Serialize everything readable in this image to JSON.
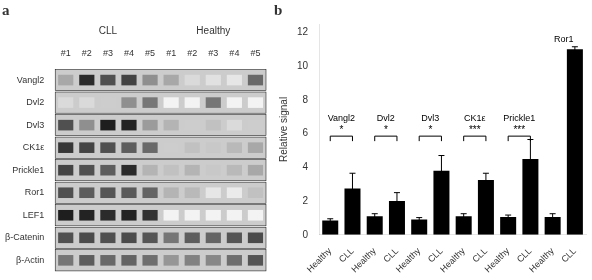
{
  "chart_data": [
    {
      "type": "heatmap",
      "title": "a",
      "rows": [
        "Vangl2",
        "Dvl2",
        "Dvl3",
        "CK1ε",
        "Prickle1",
        "Ror1",
        "LEF1",
        "β-Catenin",
        "β-Actin"
      ],
      "categories": [
        "#1",
        "#2",
        "#3",
        "#4",
        "#5"
      ],
      "series": [
        {
          "name": "CLL",
          "values": [
            [
              0.35,
              0.85,
              0.7,
              0.75,
              0.45
            ],
            [
              0.15,
              0.15,
              0.2,
              0.45,
              0.55
            ],
            [
              0.7,
              0.45,
              0.9,
              0.88,
              0.4
            ],
            [
              0.8,
              0.75,
              0.7,
              0.65,
              0.6
            ],
            [
              0.75,
              0.7,
              0.65,
              0.85,
              0.3
            ],
            [
              0.7,
              0.65,
              0.68,
              0.66,
              0.62
            ],
            [
              0.9,
              0.88,
              0.85,
              0.88,
              0.82
            ],
            [
              0.7,
              0.72,
              0.7,
              0.72,
              0.68
            ],
            [
              0.55,
              0.65,
              0.6,
              0.62,
              0.58
            ]
          ]
        },
        {
          "name": "Healthy",
          "values": [
            [
              0.35,
              0.15,
              0.12,
              0.1,
              0.6
            ],
            [
              0.05,
              0.05,
              0.55,
              0.05,
              0.05
            ],
            [
              0.3,
              0.2,
              0.25,
              0.15,
              0.2
            ],
            [
              0.2,
              0.25,
              0.22,
              0.28,
              0.35
            ],
            [
              0.25,
              0.3,
              0.22,
              0.28,
              0.35
            ],
            [
              0.3,
              0.28,
              0.1,
              0.08,
              0.25
            ],
            [
              0.05,
              0.05,
              0.05,
              0.05,
              0.05
            ],
            [
              0.55,
              0.65,
              0.62,
              0.68,
              0.72
            ],
            [
              0.42,
              0.5,
              0.48,
              0.58,
              0.68
            ]
          ]
        }
      ],
      "grid": false
    },
    {
      "type": "bar",
      "title": "b",
      "categories": [
        "Healthy",
        "CLL",
        "Healthy",
        "CLL",
        "Healthy",
        "CLL",
        "Healthy",
        "CLL",
        "Healthy",
        "CLL",
        "Healthy",
        "CLL"
      ],
      "values": [
        0.85,
        2.75,
        1.1,
        2.0,
        0.9,
        3.8,
        1.1,
        3.25,
        1.05,
        4.5,
        1.05,
        11.0
      ],
      "errors": [
        0.1,
        0.9,
        0.15,
        0.5,
        0.12,
        0.9,
        0.15,
        0.4,
        0.12,
        1.15,
        0.2,
        0.15
      ],
      "color": "#000000",
      "ylabel": "Relative signal",
      "ylim": [
        0,
        12.5
      ],
      "yticks": [
        0,
        2,
        4,
        6,
        8,
        10,
        12
      ],
      "grid": false,
      "annotations": [
        {
          "text": "Vangl2",
          "between": [
            0,
            1
          ],
          "y": 6.6
        },
        {
          "text": "Dvl2",
          "between": [
            2,
            3
          ],
          "y": 6.6
        },
        {
          "text": "Dvl3",
          "between": [
            4,
            5
          ],
          "y": 6.6
        },
        {
          "text": "CK1ε",
          "between": [
            6,
            7
          ],
          "y": 6.6
        },
        {
          "text": "Prickle1",
          "between": [
            8,
            9
          ],
          "y": 6.6
        },
        {
          "text": "Ror1",
          "between": [
            10,
            11
          ],
          "y": 11.3
        },
        {
          "text": "*",
          "between": [
            0,
            1
          ],
          "y": 5.85,
          "bracket": true
        },
        {
          "text": "*",
          "between": [
            2,
            3
          ],
          "y": 5.85,
          "bracket": true
        },
        {
          "text": "*",
          "between": [
            4,
            5
          ],
          "y": 5.85,
          "bracket": true
        },
        {
          "text": "***",
          "between": [
            6,
            7
          ],
          "y": 5.85,
          "bracket": true
        },
        {
          "text": "***",
          "between": [
            8,
            9
          ],
          "y": 5.85,
          "bracket": true
        }
      ]
    }
  ]
}
